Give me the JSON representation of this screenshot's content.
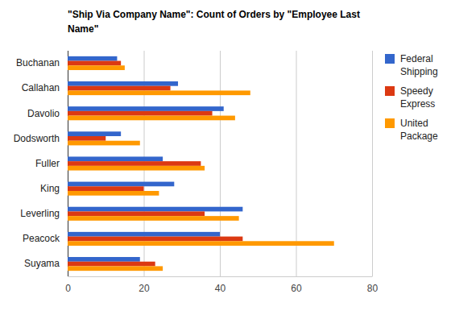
{
  "chart_data": {
    "type": "bar",
    "orientation": "horizontal",
    "title": "\"Ship Via Company Name\": Count of Orders by \"Employee Last Name\"",
    "categories": [
      "Buchanan",
      "Callahan",
      "Davolio",
      "Dodsworth",
      "Fuller",
      "King",
      "Leverling",
      "Peacock",
      "Suyama"
    ],
    "series": [
      {
        "name": "Federal Shipping",
        "color": "#3366cc",
        "values": [
          13,
          29,
          41,
          14,
          25,
          28,
          46,
          40,
          19
        ]
      },
      {
        "name": "Speedy Express",
        "color": "#dc3912",
        "values": [
          14,
          27,
          38,
          10,
          35,
          20,
          36,
          46,
          23
        ]
      },
      {
        "name": "United Package",
        "color": "#ff9900",
        "values": [
          15,
          48,
          44,
          19,
          36,
          24,
          45,
          70,
          25
        ]
      }
    ],
    "xlim": [
      0,
      80
    ],
    "xticks": [
      0,
      20,
      40,
      60,
      80
    ],
    "grid": true,
    "legend": "right"
  }
}
